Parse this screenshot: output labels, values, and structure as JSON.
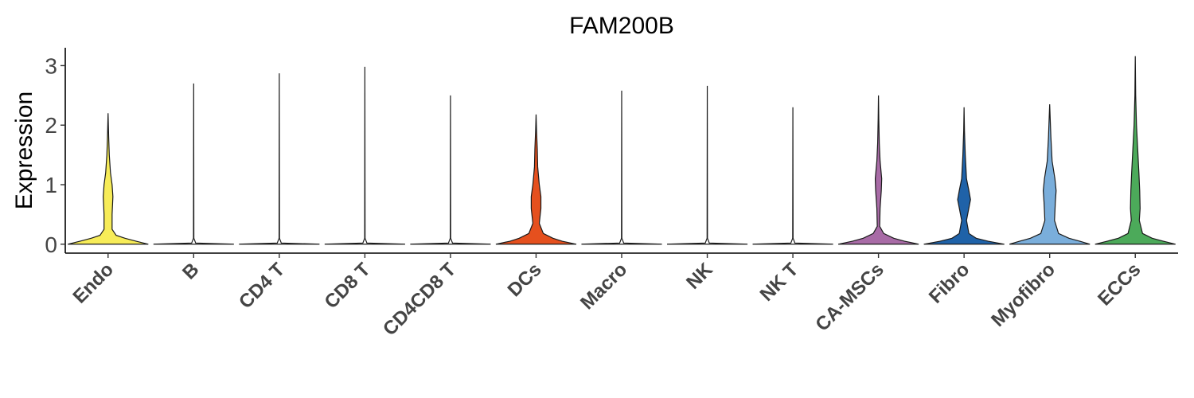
{
  "chart_data": {
    "type": "violin",
    "title": "FAM200B",
    "xlabel": "",
    "ylabel": "Expression",
    "ylim": [
      -0.15,
      3.3
    ],
    "yticks": [
      0,
      1,
      2,
      3
    ],
    "grid": false,
    "legend": "none",
    "categories": [
      "Endo",
      "B",
      "CD4 T",
      "CD8 T",
      "CD4CD8 T",
      "DCs",
      "Macro",
      "NK",
      "NK T",
      "CA-MSCs",
      "Fibro",
      "Myofibro",
      "ECCs"
    ],
    "colors": [
      "#f7ec58",
      "#ffffff",
      "#ffffff",
      "#ffffff",
      "#ffffff",
      "#e5501e",
      "#ffffff",
      "#ffffff",
      "#ffffff",
      "#a86ba6",
      "#1f62a8",
      "#7aaedb",
      "#4caa5a"
    ],
    "series": [
      {
        "name": "",
        "max": [
          2.2,
          2.7,
          2.87,
          2.98,
          2.5,
          2.18,
          2.58,
          2.66,
          2.3,
          2.5,
          2.3,
          2.35,
          3.16
        ]
      }
    ],
    "density_profiles": [
      [
        [
          0,
          1.0
        ],
        [
          0.05,
          0.7
        ],
        [
          0.1,
          0.42
        ],
        [
          0.15,
          0.2
        ],
        [
          0.25,
          0.1
        ],
        [
          0.5,
          0.1
        ],
        [
          0.8,
          0.12
        ],
        [
          1.0,
          0.1
        ],
        [
          1.2,
          0.06
        ],
        [
          1.5,
          0.03
        ],
        [
          1.8,
          0.015
        ],
        [
          2.2,
          0.0
        ]
      ],
      [
        [
          0,
          1.0
        ],
        [
          0.02,
          0.05
        ],
        [
          0.1,
          0.005
        ],
        [
          2.7,
          0.0
        ]
      ],
      [
        [
          0,
          1.0
        ],
        [
          0.02,
          0.05
        ],
        [
          0.1,
          0.005
        ],
        [
          2.87,
          0.0
        ]
      ],
      [
        [
          0,
          1.0
        ],
        [
          0.02,
          0.05
        ],
        [
          0.1,
          0.005
        ],
        [
          2.98,
          0.0
        ]
      ],
      [
        [
          0,
          1.0
        ],
        [
          0.02,
          0.05
        ],
        [
          0.1,
          0.005
        ],
        [
          2.5,
          0.0
        ]
      ],
      [
        [
          0,
          1.0
        ],
        [
          0.05,
          0.65
        ],
        [
          0.1,
          0.42
        ],
        [
          0.18,
          0.18
        ],
        [
          0.35,
          0.08
        ],
        [
          0.6,
          0.12
        ],
        [
          0.8,
          0.12
        ],
        [
          1.0,
          0.08
        ],
        [
          1.3,
          0.04
        ],
        [
          1.6,
          0.03
        ],
        [
          1.9,
          0.012
        ],
        [
          2.18,
          0.0
        ]
      ],
      [
        [
          0,
          1.0
        ],
        [
          0.02,
          0.05
        ],
        [
          0.1,
          0.005
        ],
        [
          2.58,
          0.0
        ]
      ],
      [
        [
          0,
          1.0
        ],
        [
          0.02,
          0.05
        ],
        [
          0.1,
          0.005
        ],
        [
          2.66,
          0.0
        ]
      ],
      [
        [
          0,
          1.0
        ],
        [
          0.02,
          0.05
        ],
        [
          0.1,
          0.005
        ],
        [
          2.3,
          0.0
        ]
      ],
      [
        [
          0,
          1.0
        ],
        [
          0.05,
          0.65
        ],
        [
          0.1,
          0.38
        ],
        [
          0.18,
          0.13
        ],
        [
          0.3,
          0.03
        ],
        [
          0.6,
          0.04
        ],
        [
          0.9,
          0.07
        ],
        [
          1.1,
          0.08
        ],
        [
          1.4,
          0.04
        ],
        [
          1.7,
          0.02
        ],
        [
          2.1,
          0.008
        ],
        [
          2.5,
          0.0
        ]
      ],
      [
        [
          0,
          1.0
        ],
        [
          0.05,
          0.6
        ],
        [
          0.1,
          0.3
        ],
        [
          0.18,
          0.12
        ],
        [
          0.4,
          0.06
        ],
        [
          0.75,
          0.16
        ],
        [
          0.9,
          0.12
        ],
        [
          1.1,
          0.06
        ],
        [
          1.5,
          0.03
        ],
        [
          1.9,
          0.01
        ],
        [
          2.3,
          0.0
        ]
      ],
      [
        [
          0,
          1.0
        ],
        [
          0.05,
          0.75
        ],
        [
          0.1,
          0.48
        ],
        [
          0.18,
          0.22
        ],
        [
          0.4,
          0.12
        ],
        [
          0.7,
          0.14
        ],
        [
          0.9,
          0.16
        ],
        [
          1.1,
          0.13
        ],
        [
          1.4,
          0.06
        ],
        [
          1.8,
          0.03
        ],
        [
          2.35,
          0.0
        ]
      ],
      [
        [
          0,
          1.0
        ],
        [
          0.05,
          0.7
        ],
        [
          0.1,
          0.42
        ],
        [
          0.18,
          0.18
        ],
        [
          0.4,
          0.1
        ],
        [
          0.6,
          0.12
        ],
        [
          0.9,
          0.11
        ],
        [
          1.2,
          0.09
        ],
        [
          1.6,
          0.06
        ],
        [
          2.0,
          0.03
        ],
        [
          2.5,
          0.01
        ],
        [
          3.16,
          0.0
        ]
      ]
    ]
  }
}
